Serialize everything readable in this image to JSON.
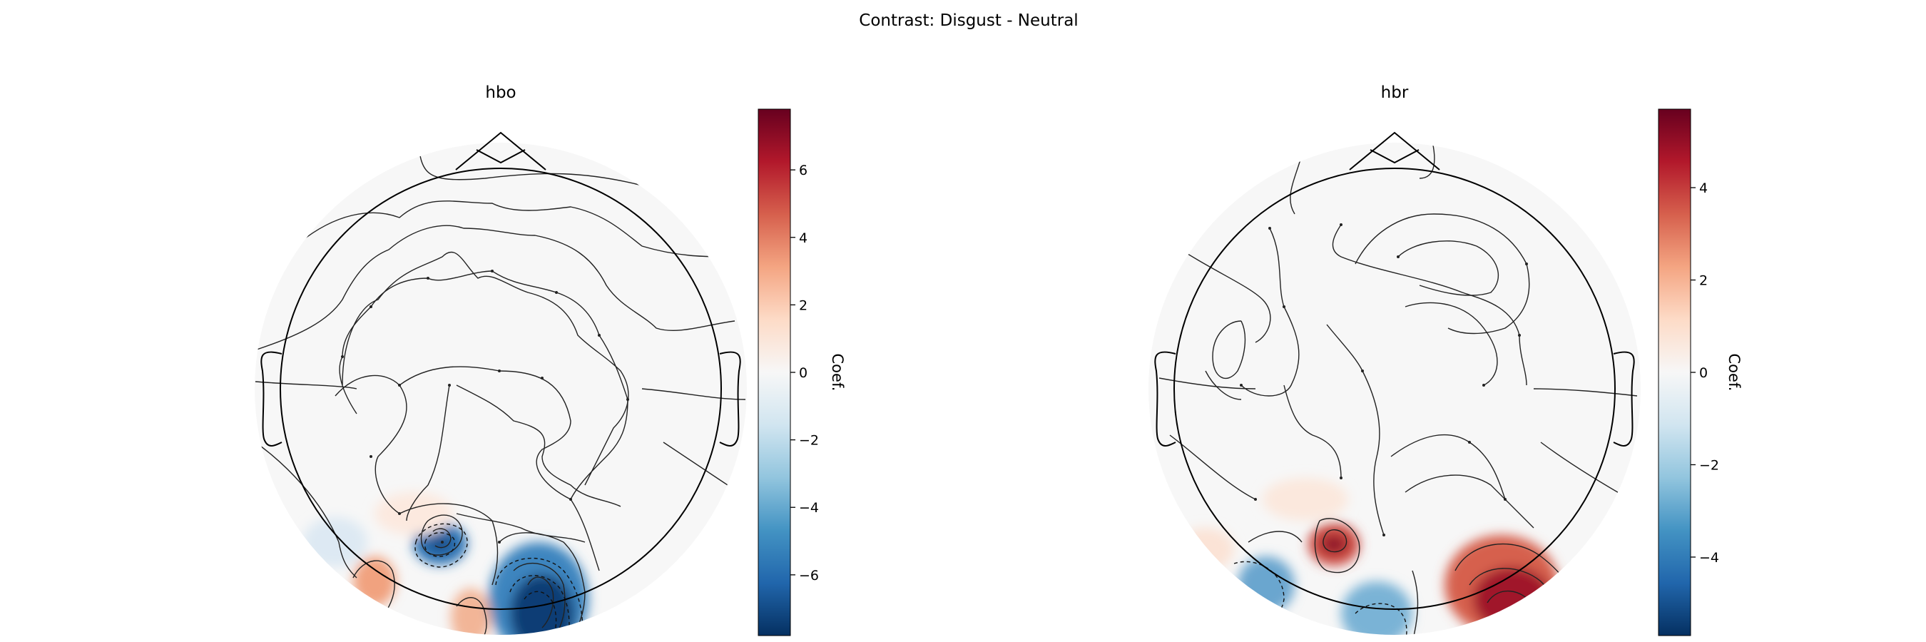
{
  "figure": {
    "suptitle": "Contrast: Disgust - Neutral"
  },
  "chart_data": [
    {
      "type": "heatmap",
      "subtype": "topomap",
      "title": "hbo",
      "colorbar": {
        "label": "Coef.",
        "range": [
          -7.8,
          7.8
        ],
        "ticks": [
          -6,
          -4,
          -2,
          0,
          2,
          4,
          6
        ],
        "tick_labels": [
          "−6",
          "−4",
          "−2",
          "0",
          "2",
          "4",
          "6"
        ],
        "cmap": "RdBu_r"
      },
      "blobs": [
        {
          "kind": "negative",
          "value": -5.5
        },
        {
          "kind": "negative",
          "value": -7.5
        },
        {
          "kind": "positive",
          "value": 3.0
        },
        {
          "kind": "positive",
          "value": 2.5
        },
        {
          "kind": "negative",
          "value": -1.5
        },
        {
          "kind": "positive",
          "value": 1.0
        }
      ]
    },
    {
      "type": "heatmap",
      "subtype": "topomap",
      "title": "hbr",
      "colorbar": {
        "label": "Coef.",
        "range": [
          -5.7,
          5.7
        ],
        "ticks": [
          -4,
          -2,
          0,
          2,
          4
        ],
        "tick_labels": [
          "−4",
          "−2",
          "0",
          "2",
          "4"
        ],
        "cmap": "RdBu_r"
      },
      "blobs": [
        {
          "kind": "positive",
          "value": 5.5
        },
        {
          "kind": "positive",
          "value": 5.6
        },
        {
          "kind": "negative",
          "value": -2.5
        },
        {
          "kind": "negative",
          "value": -2.8
        },
        {
          "kind": "positive",
          "value": 1.0
        }
      ]
    }
  ]
}
